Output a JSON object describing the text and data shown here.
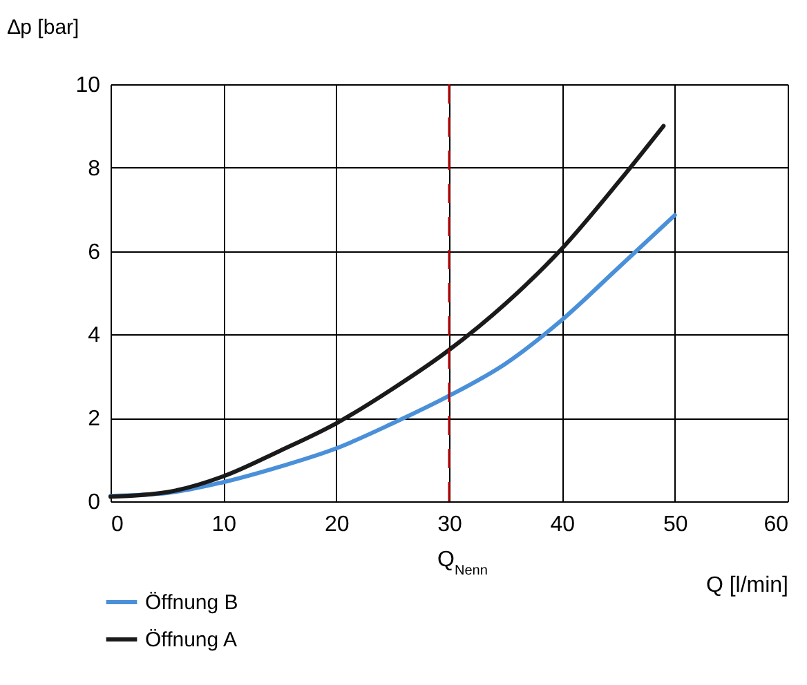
{
  "chart_data": {
    "type": "line",
    "xlabel": "Q [l/min]",
    "ylabel": "∆p [bar]",
    "xlim": [
      0,
      60
    ],
    "xticks": [
      0,
      10,
      20,
      30,
      40,
      50,
      60
    ],
    "ylim": [
      0,
      10
    ],
    "yticks": [
      0,
      2,
      4,
      6,
      8,
      10
    ],
    "grid": true,
    "legend": "bottom",
    "line_style": "solid",
    "marker": "none",
    "series": [
      {
        "name": "Öffnung B",
        "color": "#4a90d9",
        "x": [
          0,
          5,
          10,
          15,
          20,
          25,
          30,
          35,
          40,
          45,
          50
        ],
        "values": [
          0.13,
          0.2,
          0.46,
          0.83,
          1.27,
          1.87,
          2.53,
          3.3,
          4.35,
          5.6,
          6.86
        ]
      },
      {
        "name": "Öffnung A",
        "color": "#1a1a1a",
        "x": [
          0,
          5,
          10,
          15,
          20,
          25,
          30,
          35,
          40,
          45,
          49
        ],
        "values": [
          0.11,
          0.22,
          0.6,
          1.21,
          1.87,
          2.7,
          3.63,
          4.74,
          6.06,
          7.65,
          9.0
        ]
      }
    ],
    "ref_lines": [
      {
        "axis": "x",
        "value": 30,
        "label": "Q$_{Nenn}$",
        "color": "#b00000",
        "line_style": "dashed"
      }
    ]
  }
}
